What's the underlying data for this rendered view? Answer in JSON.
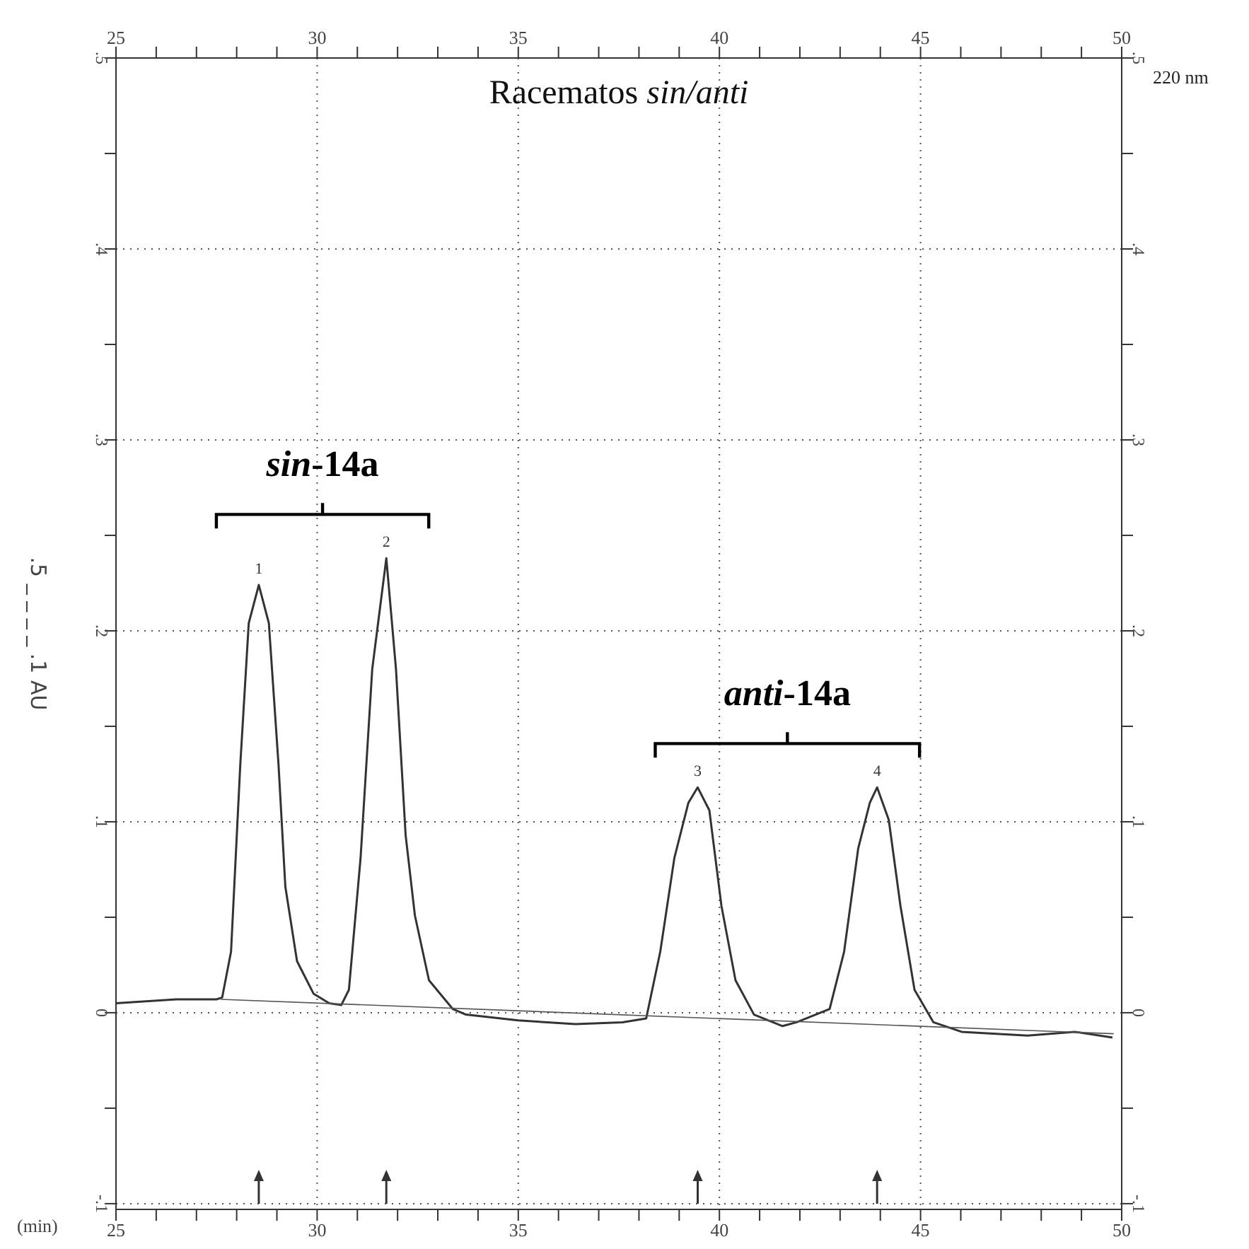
{
  "chart_data": {
    "type": "line",
    "title": "Racematos sin/anti",
    "xlabel": "(min)",
    "ylabel": ".5 _ _ _ _ .1 AU",
    "xlim": [
      25,
      50
    ],
    "x2lim": [
      25,
      50
    ],
    "ylim": [
      -0.103,
      0.5
    ],
    "y2lim": [
      -0.103,
      0.5
    ],
    "xticks": [
      25,
      {
        "value": 26,
        "label": null
      },
      {
        "value": 27,
        "label": null
      },
      {
        "value": 28,
        "label": null
      },
      {
        "value": 29,
        "label": null
      },
      30,
      {
        "value": 31,
        "label": null
      },
      {
        "value": 32,
        "label": null
      },
      {
        "value": 33,
        "label": null
      },
      {
        "value": 34,
        "label": null
      },
      35,
      {
        "value": 36,
        "label": null
      },
      {
        "value": 37,
        "label": null
      },
      {
        "value": 38,
        "label": null
      },
      {
        "value": 39,
        "label": null
      },
      40,
      {
        "value": 41,
        "label": null
      },
      {
        "value": 42,
        "label": null
      },
      {
        "value": 43,
        "label": null
      },
      {
        "value": 44,
        "label": null
      },
      45,
      {
        "value": 46,
        "label": null
      },
      {
        "value": 47,
        "label": null
      },
      {
        "value": 48,
        "label": null
      },
      {
        "value": 49,
        "label": null
      },
      50
    ],
    "x2ticks": [
      25,
      {
        "value": 26,
        "label": null
      },
      {
        "value": 27,
        "label": null
      },
      {
        "value": 28,
        "label": null
      },
      {
        "value": 29,
        "label": null
      },
      30,
      {
        "value": 31,
        "label": null
      },
      {
        "value": 32,
        "label": null
      },
      {
        "value": 33,
        "label": null
      },
      {
        "value": 34,
        "label": null
      },
      35,
      {
        "value": 36,
        "label": null
      },
      {
        "value": 37,
        "label": null
      },
      {
        "value": 38,
        "label": null
      },
      {
        "value": 39,
        "label": null
      },
      40,
      {
        "value": 41,
        "label": null
      },
      {
        "value": 42,
        "label": null
      },
      {
        "value": 43,
        "label": null
      },
      {
        "value": 44,
        "label": null
      },
      45,
      {
        "value": 46,
        "label": null
      },
      {
        "value": 47,
        "label": null
      },
      {
        "value": 48,
        "label": null
      },
      {
        "value": 49,
        "label": null
      },
      50
    ],
    "yticks": [
      {
        "value": 0.5,
        "label": ".5"
      },
      {
        "value": 0.45,
        "label": null
      },
      {
        "value": 0.4,
        "label": ".4"
      },
      {
        "value": 0.35,
        "label": null
      },
      {
        "value": 0.3,
        "label": ".3"
      },
      {
        "value": 0.25,
        "label": null
      },
      {
        "value": 0.2,
        "label": ".2"
      },
      {
        "value": 0.15,
        "label": null
      },
      {
        "value": 0.1,
        "label": ".1"
      },
      {
        "value": 0.05,
        "label": null
      },
      0,
      {
        "value": -0.05,
        "label": null
      },
      {
        "value": -0.1,
        "label": "-.1"
      }
    ],
    "y2ticks": [
      {
        "value": 0.5,
        "label": ".5"
      },
      {
        "value": 0.45,
        "label": null
      },
      {
        "value": 0.4,
        "label": ".4"
      },
      {
        "value": 0.35,
        "label": null
      },
      {
        "value": 0.3,
        "label": ".3"
      },
      {
        "value": 0.25,
        "label": null
      },
      {
        "value": 0.2,
        "label": ".2"
      },
      {
        "value": 0.15,
        "label": null
      },
      {
        "value": 0.1,
        "label": ".1"
      },
      {
        "value": 0.05,
        "label": null
      },
      0,
      {
        "value": -0.05,
        "label": null
      },
      {
        "value": -0.1,
        "label": "-.1"
      }
    ],
    "grid": true,
    "line_style": "solid",
    "marker": "none",
    "series": [
      {
        "color": "#333333",
        "x": [
          25,
          26.5,
          27.5,
          27.64,
          27.86,
          28.09,
          28.3,
          28.55,
          28.8,
          29.04,
          29.21,
          29.5,
          29.91,
          30.3,
          30.6,
          30.79,
          31.08,
          31.37,
          31.72,
          31.96,
          32.2,
          32.43,
          32.78,
          33.37,
          33.7,
          35,
          36.42,
          37.59,
          38.18,
          38.53,
          38.88,
          39.23,
          39.46,
          39.75,
          40.05,
          40.4,
          40.86,
          41.57,
          41.92,
          42.39,
          42.74,
          43.1,
          43.45,
          43.74,
          43.92,
          44.21,
          44.5,
          44.85,
          45.32,
          46.02,
          47.66,
          48.83,
          49.77
        ],
        "values": [
          0.005,
          0.007,
          0.007,
          0.008,
          0.032,
          0.13,
          0.204,
          0.224,
          0.204,
          0.13,
          0.066,
          0.027,
          0.01,
          0.005,
          0.004,
          0.012,
          0.081,
          0.18,
          0.238,
          0.18,
          0.093,
          0.051,
          0.017,
          0.002,
          -0.001,
          -0.004,
          -0.006,
          -0.005,
          -0.003,
          0.032,
          0.081,
          0.11,
          0.118,
          0.106,
          0.056,
          0.017,
          -0.001,
          -0.007,
          -0.005,
          -0.001,
          0.002,
          0.032,
          0.086,
          0.11,
          0.118,
          0.101,
          0.056,
          0.012,
          -0.005,
          -0.01,
          -0.012,
          -0.01,
          -0.013
        ]
      },
      {
        "color": "#555555",
        "x": [
          27.6,
          49.8
        ],
        "values": [
          0.007,
          -0.011
        ]
      }
    ],
    "annotations": [
      "sin-14a",
      "anti-14a",
      "220 nm",
      {
        "text": "1",
        "x": 28.55,
        "y": 0.224
      },
      {
        "text": "2",
        "x": 31.72,
        "y": 0.238
      },
      {
        "text": "3",
        "x": 39.46,
        "y": 0.118
      },
      {
        "text": "4",
        "x": 43.92,
        "y": 0.118
      }
    ]
  }
}
